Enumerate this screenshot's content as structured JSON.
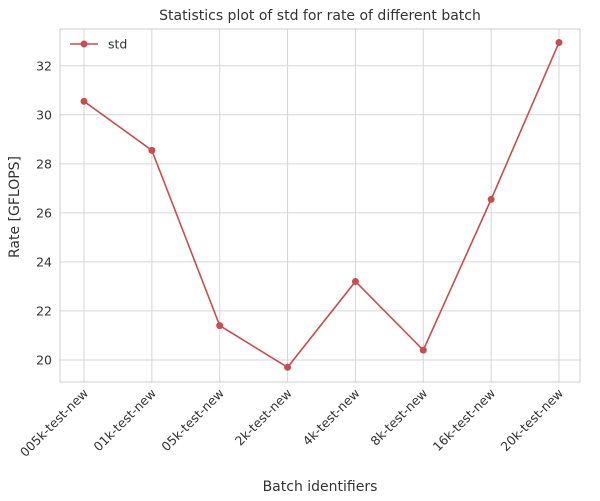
{
  "chart_data": {
    "type": "line",
    "title": "Statistics plot of std for rate of different batch",
    "xlabel": "Batch identifiers",
    "ylabel": "Rate [GFLOPS]",
    "categories": [
      "005k-test-new",
      "01k-test-new",
      "05k-test-new",
      "2k-test-new",
      "4k-test-new",
      "8k-test-new",
      "16k-test-new",
      "20k-test-new"
    ],
    "series": [
      {
        "name": "std",
        "color": "#c44e52",
        "values": [
          30.55,
          28.55,
          21.4,
          19.7,
          23.2,
          20.4,
          26.55,
          32.95
        ]
      }
    ],
    "ylim": [
      19.1,
      33.5
    ],
    "yticks": [
      20,
      22,
      24,
      26,
      28,
      30,
      32
    ],
    "grid": true,
    "legend_position": "top-left"
  }
}
